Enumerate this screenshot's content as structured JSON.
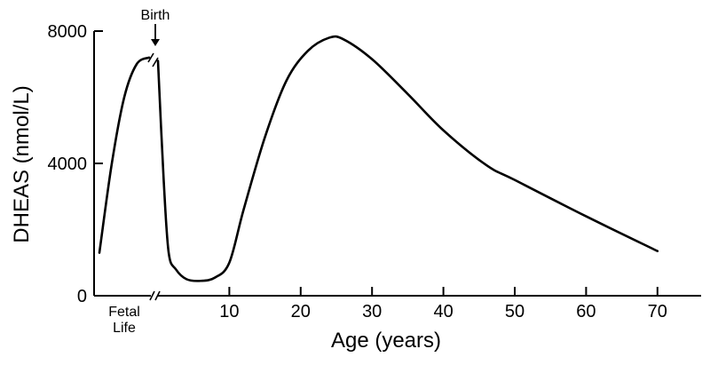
{
  "chart_data": {
    "type": "line",
    "title": "",
    "xlabel": "Age (years)",
    "ylabel": "DHEAS (nmol/L)",
    "ylim": [
      0,
      8000
    ],
    "grid": false,
    "y_ticks": [
      {
        "value": 0,
        "label": "0"
      },
      {
        "value": 4000,
        "label": "4000"
      },
      {
        "value": 8000,
        "label": "8000"
      }
    ],
    "x_ticks": [
      {
        "value": 10,
        "label": "10"
      },
      {
        "value": 20,
        "label": "20"
      },
      {
        "value": 30,
        "label": "30"
      },
      {
        "value": 40,
        "label": "40"
      },
      {
        "value": 50,
        "label": "50"
      },
      {
        "value": 60,
        "label": "60"
      },
      {
        "value": 70,
        "label": "70"
      }
    ],
    "x_break_label": [
      "Fetal",
      "Life"
    ],
    "annotation": {
      "label": "Birth",
      "arrow": "down"
    },
    "series": [
      {
        "segment": "fetal-life",
        "points": [
          {
            "x": 0.0,
            "y": 1300
          },
          {
            "x": 0.25,
            "y": 4000
          },
          {
            "x": 0.5,
            "y": 6000
          },
          {
            "x": 0.75,
            "y": 7000
          },
          {
            "x": 1.0,
            "y": 7200
          }
        ]
      },
      {
        "segment": "postnatal",
        "points": [
          {
            "x": 0.0,
            "y": 7100
          },
          {
            "x": 0.8,
            "y": 3500
          },
          {
            "x": 1.5,
            "y": 1300
          },
          {
            "x": 2.5,
            "y": 800
          },
          {
            "x": 4,
            "y": 500
          },
          {
            "x": 6,
            "y": 450
          },
          {
            "x": 8,
            "y": 550
          },
          {
            "x": 10,
            "y": 1000
          },
          {
            "x": 12,
            "y": 2600
          },
          {
            "x": 15,
            "y": 4800
          },
          {
            "x": 18,
            "y": 6500
          },
          {
            "x": 21,
            "y": 7400
          },
          {
            "x": 24,
            "y": 7800
          },
          {
            "x": 26,
            "y": 7750
          },
          {
            "x": 30,
            "y": 7150
          },
          {
            "x": 35,
            "y": 6100
          },
          {
            "x": 40,
            "y": 5000
          },
          {
            "x": 46,
            "y": 3950
          },
          {
            "x": 50,
            "y": 3500
          },
          {
            "x": 60,
            "y": 2400
          },
          {
            "x": 70,
            "y": 1350
          }
        ]
      }
    ]
  }
}
